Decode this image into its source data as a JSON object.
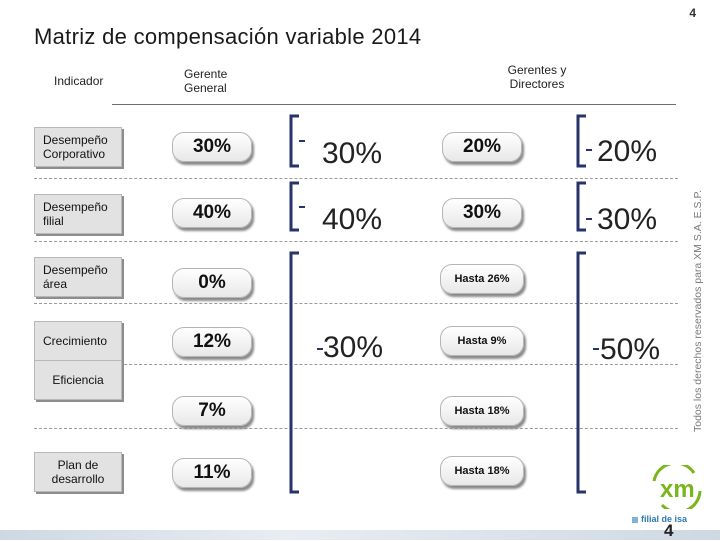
{
  "page": {
    "title": "Matriz de compensación variable 2014",
    "page_number_top": "4",
    "page_number_bottom": "4"
  },
  "headers": {
    "indicator": "Indicador",
    "gerente_general": "Gerente General",
    "gerentes_directores": "Gerentes y Directores"
  },
  "rows": [
    {
      "indicator": "Desempeño Corporativo",
      "gg": "30%",
      "gd": "20%"
    },
    {
      "indicator": "Desempeño filial",
      "gg": "40%",
      "gd": "30%"
    },
    {
      "indicator": "Desempeño área",
      "gg": "0%",
      "gd": "Hasta 26%"
    },
    {
      "indicator": "Crecimiento",
      "gg": "12%",
      "gd": "Hasta 9%"
    },
    {
      "indicator": "Eficiencia",
      "gg": "7%",
      "gd": "Hasta 18%"
    },
    {
      "indicator": "Plan de desarrollo",
      "gg": "11%",
      "gd": "Hasta 18%"
    }
  ],
  "totals": {
    "gg_corporativo": "30%",
    "gg_filial": "40%",
    "gg_rest": "30%",
    "gd_corporativo": "20%",
    "gd_filial": "30%",
    "gd_rest": "50%"
  },
  "footer": {
    "copyright": "Todos los derechos reservados para XM S.A. E.S.P.",
    "logo_text": "xm",
    "logo_tagline": "filial de isa"
  },
  "colors": {
    "logo_green": "#7ab51d",
    "logo_blue": "#1b75bb",
    "bracket": "#27336b"
  }
}
